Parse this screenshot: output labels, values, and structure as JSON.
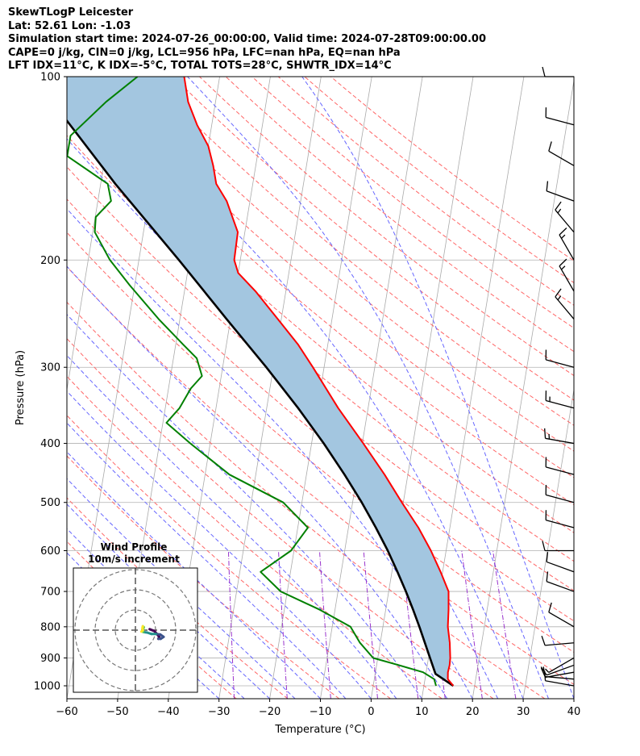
{
  "header": {
    "line1": "SkewTLogP Leicester",
    "line2": "Lat: 52.61   Lon: -1.03",
    "line3": "Simulation start time: 2024-07-26_00:00:00, Valid time: 2024-07-28T09:00:00.00",
    "line4": "CAPE=0 j/kg, CIN=0 j/kg, LCL=956 hPa, LFC=nan hPa, EQ=nan hPa",
    "line5": "LFT IDX=11°C, K IDX=-5°C, TOTAL TOTS=28°C, SHWTR_IDX=14°C"
  },
  "chart_data": [
    {
      "type": "line",
      "subtype": "skew-t log-p",
      "xlabel": "Temperature (°C)",
      "ylabel": "Pressure (hPa)",
      "xlim": [
        -60,
        40
      ],
      "ylim": [
        1050,
        100
      ],
      "yscale": "log",
      "x_ticks": [
        -60,
        -50,
        -40,
        -30,
        -20,
        -10,
        0,
        10,
        20,
        30,
        40
      ],
      "x_tick_labels": [
        "−60",
        "−50",
        "−40",
        "−30",
        "−20",
        "−10",
        "0",
        "10",
        "20",
        "30",
        "40"
      ],
      "y_ticks": [
        100,
        200,
        300,
        400,
        500,
        600,
        700,
        800,
        900,
        1000
      ],
      "y_tick_labels": [
        "100",
        "200",
        "300",
        "400",
        "500",
        "600",
        "700",
        "800",
        "900",
        "1000"
      ],
      "grid": true,
      "colors": {
        "temperature": "#ff0000",
        "dewpoint": "#008000",
        "parcel": "#000000",
        "shade": "#a3c6e0",
        "dry_adiabat": "#ff6666",
        "moist_adiabat": "#6666ff",
        "mixing_ratio": "#9933cc",
        "isotherm": "#aaaaaa"
      },
      "series": [
        {
          "role": "temperature",
          "points": [
            [
              1000,
              15.8
            ],
            [
              975,
              14.5
            ],
            [
              950,
              14.3
            ],
            [
              925,
              14.4
            ],
            [
              900,
              14.3
            ],
            [
              850,
              13.7
            ],
            [
              800,
              12.8
            ],
            [
              750,
              12.4
            ],
            [
              700,
              11.8
            ],
            [
              650,
              9.6
            ],
            [
              600,
              7.0
            ],
            [
              550,
              3.8
            ],
            [
              500,
              -0.3
            ],
            [
              450,
              -4.6
            ],
            [
              400,
              -9.8
            ],
            [
              350,
              -15.9
            ],
            [
              300,
              -22.2
            ],
            [
              275,
              -25.9
            ],
            [
              250,
              -30.7
            ],
            [
              225,
              -36.0
            ],
            [
              210,
              -40.0
            ],
            [
              200,
              -41.2
            ],
            [
              180,
              -41.4
            ],
            [
              160,
              -44.6
            ],
            [
              150,
              -47.2
            ],
            [
              140,
              -48.4
            ],
            [
              130,
              -50.0
            ],
            [
              120,
              -52.9
            ],
            [
              110,
              -55.4
            ],
            [
              100,
              -57.0
            ]
          ]
        },
        {
          "role": "dewpoint",
          "points": [
            [
              1000,
              12.4
            ],
            [
              975,
              11.8
            ],
            [
              950,
              9.4
            ],
            [
              925,
              4.4
            ],
            [
              900,
              -0.9
            ],
            [
              850,
              -4.0
            ],
            [
              800,
              -6.4
            ],
            [
              750,
              -13.0
            ],
            [
              700,
              -21.3
            ],
            [
              650,
              -25.9
            ],
            [
              600,
              -20.6
            ],
            [
              550,
              -18.0
            ],
            [
              500,
              -23.7
            ],
            [
              450,
              -35.2
            ],
            [
              400,
              -43.9
            ],
            [
              370,
              -49.3
            ],
            [
              350,
              -47.2
            ],
            [
              325,
              -45.6
            ],
            [
              310,
              -43.8
            ],
            [
              290,
              -45.4
            ],
            [
              275,
              -48.6
            ],
            [
              250,
              -54.2
            ],
            [
              220,
              -61.0
            ],
            [
              200,
              -65.7
            ],
            [
              180,
              -69.6
            ],
            [
              170,
              -69.9
            ],
            [
              160,
              -67.4
            ],
            [
              150,
              -68.6
            ],
            [
              135,
              -77.5
            ],
            [
              125,
              -77.5
            ],
            [
              110,
              -71.6
            ],
            [
              100,
              -66.2
            ]
          ]
        },
        {
          "role": "parcel",
          "points": [
            [
              1000,
              15.8
            ],
            [
              956,
              11.9
            ],
            [
              900,
              10.3
            ],
            [
              850,
              8.8
            ],
            [
              800,
              7.2
            ],
            [
              750,
              5.4
            ],
            [
              700,
              3.4
            ],
            [
              650,
              1.1
            ],
            [
              600,
              -1.5
            ],
            [
              550,
              -4.6
            ],
            [
              500,
              -8.2
            ],
            [
              450,
              -12.5
            ],
            [
              400,
              -17.6
            ],
            [
              350,
              -23.8
            ],
            [
              300,
              -31.4
            ],
            [
              250,
              -40.8
            ],
            [
              200,
              -52.1
            ],
            [
              150,
              -67.1
            ],
            [
              100,
              -86.8
            ]
          ]
        }
      ],
      "wind_barbs": [
        {
          "p": 1000,
          "speed": 10,
          "dir": 280
        },
        {
          "p": 975,
          "speed": 10,
          "dir": 275
        },
        {
          "p": 950,
          "speed": 10,
          "dir": 260
        },
        {
          "p": 925,
          "speed": 10,
          "dir": 250
        },
        {
          "p": 900,
          "speed": 5,
          "dir": 240
        },
        {
          "p": 850,
          "speed": 10,
          "dir": 265
        },
        {
          "p": 800,
          "speed": 10,
          "dir": 300
        },
        {
          "p": 700,
          "speed": 10,
          "dir": 290
        },
        {
          "p": 650,
          "speed": 10,
          "dir": 290
        },
        {
          "p": 600,
          "speed": 10,
          "dir": 270
        },
        {
          "p": 550,
          "speed": 10,
          "dir": 285
        },
        {
          "p": 500,
          "speed": 10,
          "dir": 285
        },
        {
          "p": 450,
          "speed": 10,
          "dir": 285
        },
        {
          "p": 400,
          "speed": 15,
          "dir": 280
        },
        {
          "p": 350,
          "speed": 15,
          "dir": 285
        },
        {
          "p": 300,
          "speed": 10,
          "dir": 285
        },
        {
          "p": 250,
          "speed": 15,
          "dir": 320
        },
        {
          "p": 225,
          "speed": 15,
          "dir": 330
        },
        {
          "p": 200,
          "speed": 15,
          "dir": 330
        },
        {
          "p": 180,
          "speed": 15,
          "dir": 320
        },
        {
          "p": 160,
          "speed": 10,
          "dir": 290
        },
        {
          "p": 140,
          "speed": 10,
          "dir": 300
        },
        {
          "p": 120,
          "speed": 10,
          "dir": 285
        },
        {
          "p": 100,
          "speed": 10,
          "dir": 270
        }
      ]
    },
    {
      "type": "line",
      "subtype": "hodograph",
      "title": "Wind Profile",
      "subtitle": "10m/s increment",
      "ring_spacing_ms": 10,
      "rings": 3,
      "colormap": [
        "#440154",
        "#3b528b",
        "#21918c",
        "#5ec962",
        "#fde725"
      ],
      "points_uv": [
        [
          3.2,
          0.4
        ],
        [
          5.2,
          -0.4
        ],
        [
          6.4,
          -1.8
        ],
        [
          7.2,
          -2.8
        ],
        [
          6.8,
          -3.6
        ],
        [
          7.8,
          -3.6
        ],
        [
          9.0,
          -2.8
        ],
        [
          7.6,
          -1.8
        ],
        [
          5.8,
          -1.6
        ],
        [
          4.0,
          -1.6
        ],
        [
          2.2,
          -1.0
        ],
        [
          0.6,
          -0.8
        ],
        [
          0.4,
          -0.2
        ],
        [
          0.6,
          0.6
        ],
        [
          0.8,
          1.2
        ],
        [
          0.4,
          1.6
        ],
        [
          0.2,
          0.8
        ],
        [
          0.4,
          0.0
        ],
        [
          -0.2,
          -0.6
        ]
      ]
    }
  ]
}
